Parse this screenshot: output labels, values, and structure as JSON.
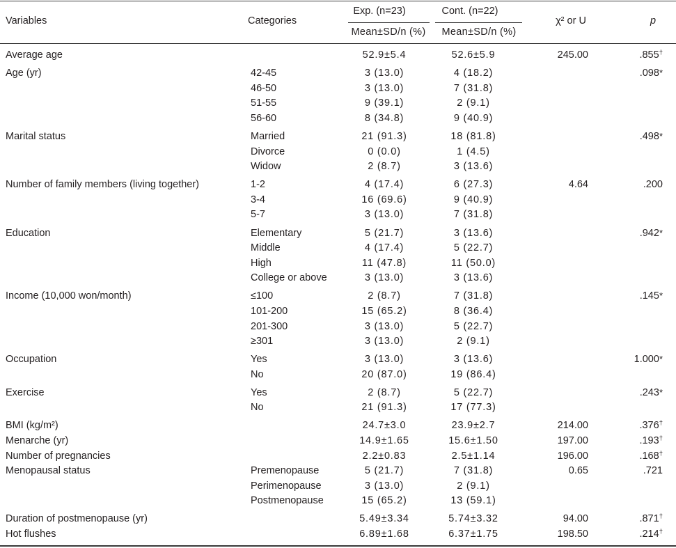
{
  "table": {
    "header": {
      "variables": "Variables",
      "categories": "Categories",
      "exp_group": "Exp. (n=23)",
      "exp_sub": "Mean±SD/n (%)",
      "cont_group": "Cont. (n=22)",
      "cont_sub": "Mean±SD/n (%)",
      "statistic": "χ² or U",
      "p": "p"
    },
    "groups": [
      {
        "rows": [
          {
            "variable": "Average age",
            "exp": "52.9±5.4",
            "cont": "52.6±5.9",
            "stat": "245.00",
            "p": ".855",
            "mark": "†"
          }
        ]
      },
      {
        "rows": [
          {
            "variable": "Age (yr)",
            "category": "42-45",
            "exp": "3 (13.0)",
            "cont": "4 (18.2)",
            "p": ".098",
            "mark": "*"
          },
          {
            "category": "46-50",
            "exp": "3 (13.0)",
            "cont": "7 (31.8)"
          },
          {
            "category": "51-55",
            "exp": "9 (39.1)",
            "cont": "2 (9.1)"
          },
          {
            "category": "56-60",
            "exp": "8 (34.8)",
            "cont": "9 (40.9)"
          }
        ]
      },
      {
        "rows": [
          {
            "variable": "Marital status",
            "category": "Married",
            "exp": "21 (91.3)",
            "cont": "18 (81.8)",
            "p": ".498",
            "mark": "*"
          },
          {
            "category": "Divorce",
            "exp": "0 (0.0)",
            "cont": "1 (4.5)"
          },
          {
            "category": "Widow",
            "exp": "2 (8.7)",
            "cont": "3 (13.6)"
          }
        ]
      },
      {
        "rows": [
          {
            "variable": "Number of family members (living together)",
            "category": "1-2",
            "exp": "4 (17.4)",
            "cont": "6 (27.3)",
            "stat": "4.64",
            "p": ".200"
          },
          {
            "category": "3-4",
            "exp": "16 (69.6)",
            "cont": "9 (40.9)"
          },
          {
            "category": "5-7",
            "exp": "3 (13.0)",
            "cont": "7 (31.8)"
          }
        ]
      },
      {
        "rows": [
          {
            "variable": "Education",
            "category": "Elementary",
            "exp": "5 (21.7)",
            "cont": "3 (13.6)",
            "p": ".942",
            "mark": "*"
          },
          {
            "category": "Middle",
            "exp": "4 (17.4)",
            "cont": "5 (22.7)"
          },
          {
            "category": "High",
            "exp": "11 (47.8)",
            "cont": "11 (50.0)"
          },
          {
            "category": "College or above",
            "exp": "3 (13.0)",
            "cont": "3 (13.6)"
          }
        ]
      },
      {
        "rows": [
          {
            "variable": "Income (10,000 won/month)",
            "category": "≤100",
            "exp": "2 (8.7)",
            "cont": "7 (31.8)",
            "p": ".145",
            "mark": "*"
          },
          {
            "category": "101-200",
            "exp": "15 (65.2)",
            "cont": "8 (36.4)"
          },
          {
            "category": "201-300",
            "exp": "3 (13.0)",
            "cont": "5 (22.7)"
          },
          {
            "category": "≥301",
            "exp": "3 (13.0)",
            "cont": "2 (9.1)"
          }
        ]
      },
      {
        "rows": [
          {
            "variable": "Occupation",
            "category": "Yes",
            "exp": "3 (13.0)",
            "cont": "3 (13.6)",
            "p": "1.000",
            "mark": "*"
          },
          {
            "category": "No",
            "exp": "20 (87.0)",
            "cont": "19 (86.4)"
          }
        ]
      },
      {
        "rows": [
          {
            "variable": "Exercise",
            "category": "Yes",
            "exp": "2 (8.7)",
            "cont": "5 (22.7)",
            "p": ".243",
            "mark": "*"
          },
          {
            "category": "No",
            "exp": "21 (91.3)",
            "cont": "17 (77.3)"
          }
        ]
      },
      {
        "rows": [
          {
            "variable": "BMI (kg/m²)",
            "exp": "24.7±3.0",
            "cont": "23.9±2.7",
            "stat": "214.00",
            "p": ".376",
            "mark": "†"
          },
          {
            "variable": "Menarche (yr)",
            "exp": "14.9±1.65",
            "cont": "15.6±1.50",
            "stat": "197.00",
            "p": ".193",
            "mark": "†"
          },
          {
            "variable": "Number of pregnancies",
            "exp": "2.2±0.83",
            "cont": "2.5±1.14",
            "stat": "196.00",
            "p": ".168",
            "mark": "†"
          },
          {
            "variable": "Menopausal status",
            "category": "Premenopause",
            "exp": "5 (21.7)",
            "cont": "7 (31.8)",
            "stat": "0.65",
            "p": ".721"
          },
          {
            "category": "Perimenopause",
            "exp": "3 (13.0)",
            "cont": "2 (9.1)"
          },
          {
            "category": "Postmenopause",
            "exp": "15 (65.2)",
            "cont": "13 (59.1)"
          }
        ]
      },
      {
        "rows": [
          {
            "variable": "Duration of postmenopause (yr)",
            "exp": "5.49±3.34",
            "cont": "5.74±3.32",
            "stat": "94.00",
            "p": ".871",
            "mark": "†"
          },
          {
            "variable": "Hot flushes",
            "exp": "6.89±1.68",
            "cont": "6.37±1.75",
            "stat": "198.50",
            "p": ".214",
            "mark": "†"
          }
        ]
      }
    ]
  }
}
